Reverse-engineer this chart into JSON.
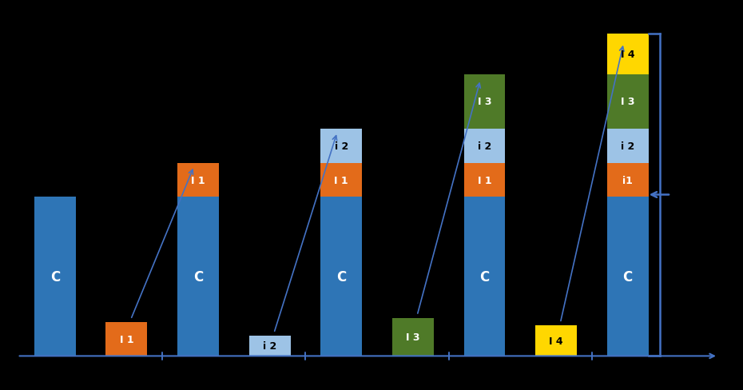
{
  "background_color": "#000000",
  "bar_color_C": "#2e75b6",
  "bar_color_I1": "#e36b1a",
  "bar_color_i2": "#9dc3e6",
  "bar_color_I3": "#4f7a28",
  "bar_color_I4": "#ffd700",
  "arrow_color": "#4472c4",
  "C": 3.5,
  "I1": 0.75,
  "i2": 0.75,
  "I3": 1.2,
  "I4": 0.9,
  "bar_width": 0.55,
  "xlim": [
    0,
    9.8
  ],
  "ylim": [
    -0.7,
    7.8
  ],
  "positions": [
    0.7,
    1.65,
    2.6,
    3.55,
    4.5,
    5.45,
    6.4,
    7.35,
    8.3
  ]
}
